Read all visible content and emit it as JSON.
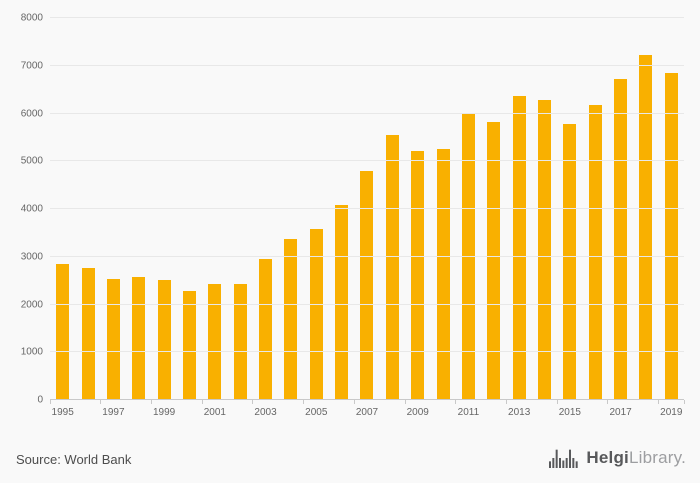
{
  "chart_data": {
    "type": "bar",
    "categories": [
      1995,
      1996,
      1997,
      1998,
      1999,
      2000,
      2001,
      2002,
      2003,
      2004,
      2005,
      2006,
      2007,
      2008,
      2009,
      2010,
      2011,
      2012,
      2013,
      2014,
      2015,
      2016,
      2017,
      2018,
      2019
    ],
    "values": [
      2840,
      2760,
      2530,
      2570,
      2520,
      2290,
      2440,
      2430,
      2950,
      3380,
      3590,
      4090,
      4790,
      5560,
      5210,
      5250,
      6000,
      5830,
      6360,
      6290,
      5770,
      6170,
      6720,
      7230,
      6840
    ],
    "title": "",
    "xlabel": "",
    "ylabel": "",
    "ylim": [
      0,
      8000
    ],
    "ytick_step": 1000,
    "x_tick_labels_shown": [
      "1995",
      "1997",
      "1999",
      "2001",
      "2003",
      "2005",
      "2007",
      "2009",
      "2011",
      "2013",
      "2015",
      "2017",
      "2019"
    ],
    "grid": true,
    "legend_position": "none",
    "bar_color": "#F9B000"
  },
  "footer": {
    "source": "Source: World Bank",
    "brand": {
      "part1": "Helgi",
      "part2": "Library."
    }
  },
  "colors": {
    "background": "#f9f9f9",
    "gridline": "#e8e8e8",
    "axis": "#c9c9c9",
    "tick_text": "#666666",
    "source_text": "#4d4d4d",
    "brand_dark": "#58595b",
    "brand_light": "#9d9ea1"
  }
}
